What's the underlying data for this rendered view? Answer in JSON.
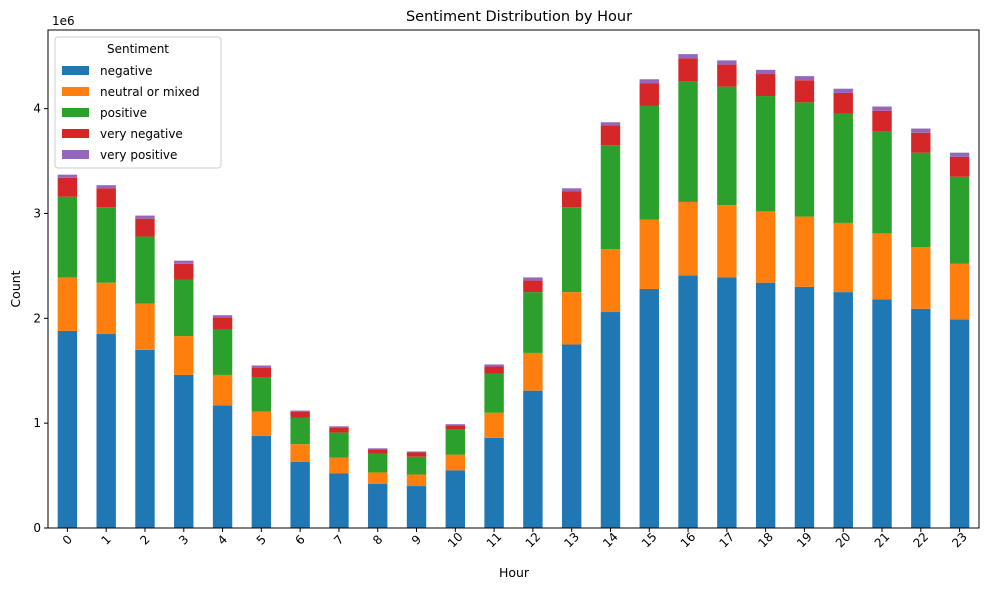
{
  "chart_data": {
    "type": "bar",
    "stacked": true,
    "title": "Sentiment Distribution by Hour",
    "xlabel": "Hour",
    "ylabel": "Count",
    "y_multiplier_label": "1e6",
    "ylim": [
      0,
      4.75
    ],
    "yticks": [
      0,
      1,
      2,
      3,
      4
    ],
    "grid": false,
    "legend": {
      "title": "Sentiment",
      "position": "top-left"
    },
    "categories": [
      "0",
      "1",
      "2",
      "3",
      "4",
      "5",
      "6",
      "7",
      "8",
      "9",
      "10",
      "11",
      "12",
      "13",
      "14",
      "15",
      "16",
      "17",
      "18",
      "19",
      "20",
      "21",
      "22",
      "23"
    ],
    "series": [
      {
        "name": "negative",
        "color": "#1f77b4",
        "values": [
          1.88,
          1.85,
          1.7,
          1.46,
          1.17,
          0.88,
          0.63,
          0.52,
          0.42,
          0.4,
          0.55,
          0.86,
          1.31,
          1.75,
          2.06,
          2.28,
          2.41,
          2.39,
          2.34,
          2.3,
          2.25,
          2.18,
          2.09,
          1.99
        ]
      },
      {
        "name": "neutral or mixed",
        "color": "#ff7f0e",
        "values": [
          0.51,
          0.49,
          0.44,
          0.37,
          0.29,
          0.23,
          0.17,
          0.15,
          0.11,
          0.11,
          0.15,
          0.24,
          0.36,
          0.5,
          0.6,
          0.66,
          0.7,
          0.69,
          0.68,
          0.67,
          0.66,
          0.63,
          0.59,
          0.53
        ]
      },
      {
        "name": "positive",
        "color": "#2ca02c",
        "values": [
          0.77,
          0.72,
          0.64,
          0.54,
          0.43,
          0.33,
          0.25,
          0.24,
          0.18,
          0.17,
          0.24,
          0.37,
          0.58,
          0.81,
          0.99,
          1.09,
          1.15,
          1.13,
          1.1,
          1.09,
          1.04,
          0.97,
          0.9,
          0.83
        ]
      },
      {
        "name": "very negative",
        "color": "#d62728",
        "values": [
          0.18,
          0.18,
          0.17,
          0.15,
          0.12,
          0.09,
          0.06,
          0.05,
          0.04,
          0.04,
          0.04,
          0.07,
          0.11,
          0.15,
          0.19,
          0.21,
          0.22,
          0.21,
          0.21,
          0.21,
          0.2,
          0.2,
          0.19,
          0.19
        ]
      },
      {
        "name": "very positive",
        "color": "#9467bd",
        "values": [
          0.03,
          0.03,
          0.03,
          0.03,
          0.02,
          0.02,
          0.01,
          0.01,
          0.01,
          0.01,
          0.01,
          0.02,
          0.03,
          0.03,
          0.03,
          0.04,
          0.04,
          0.04,
          0.04,
          0.04,
          0.04,
          0.04,
          0.04,
          0.04
        ]
      }
    ]
  }
}
